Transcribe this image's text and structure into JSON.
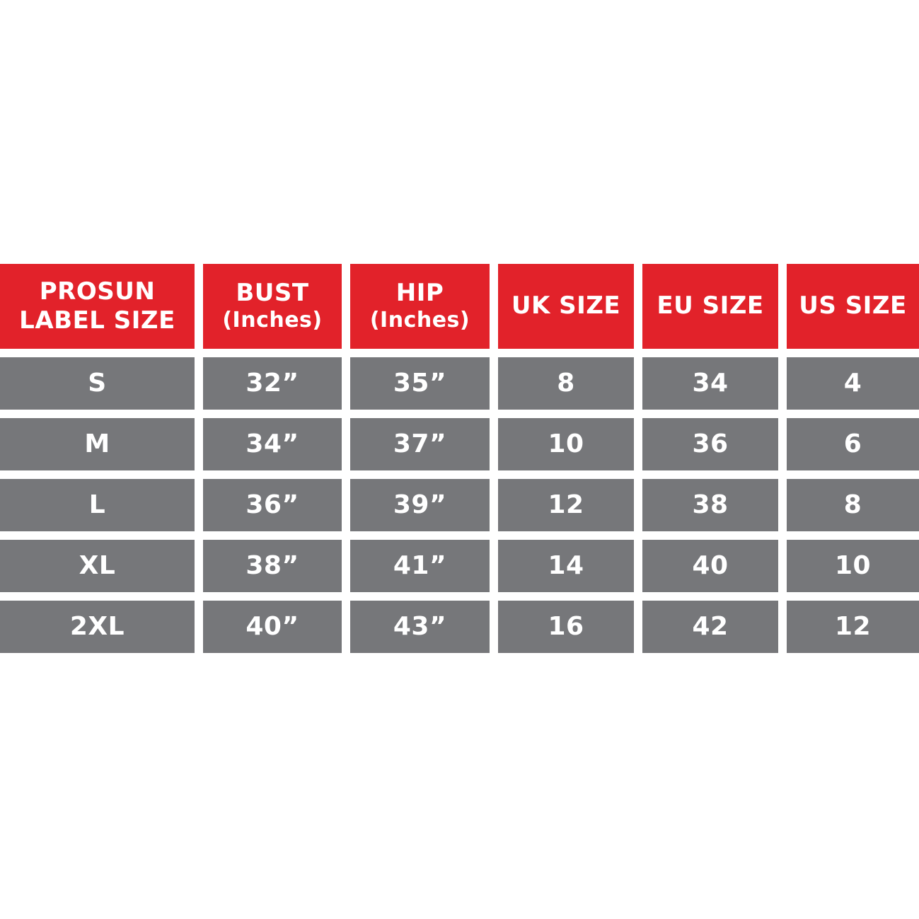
{
  "page": {
    "background": "#ffffff"
  },
  "colors": {
    "header_background": "#e2222a",
    "row_background": "#76777a",
    "cell_text": "#ffffff"
  },
  "table": {
    "columns": [
      {
        "line1": "PROSUN",
        "line2": "LABEL SIZE"
      },
      {
        "line1": "BUST",
        "line2": "(Inches)"
      },
      {
        "line1": "HIP",
        "line2": "(Inches)"
      },
      {
        "line1": "UK SIZE",
        "line2": ""
      },
      {
        "line1": "EU SIZE",
        "line2": ""
      },
      {
        "line1": "US SIZE",
        "line2": ""
      }
    ],
    "rows": [
      {
        "label": "S",
        "bust": "32”",
        "hip": "35”",
        "uk": "8",
        "eu": "34",
        "us": "4"
      },
      {
        "label": "M",
        "bust": "34”",
        "hip": "37”",
        "uk": "10",
        "eu": "36",
        "us": "6"
      },
      {
        "label": "L",
        "bust": "36”",
        "hip": "39”",
        "uk": "12",
        "eu": "38",
        "us": "8"
      },
      {
        "label": "XL",
        "bust": "38”",
        "hip": "41”",
        "uk": "14",
        "eu": "40",
        "us": "10"
      },
      {
        "label": "2XL",
        "bust": "40”",
        "hip": "43”",
        "uk": "16",
        "eu": "42",
        "us": "12"
      }
    ]
  },
  "chart_data": {
    "type": "table",
    "columns": [
      "PROSUN LABEL SIZE",
      "BUST (Inches)",
      "HIP (Inches)",
      "UK SIZE",
      "EU SIZE",
      "US SIZE"
    ],
    "rows": [
      [
        "S",
        "32”",
        "35”",
        "8",
        "34",
        "4"
      ],
      [
        "M",
        "34”",
        "37”",
        "10",
        "36",
        "6"
      ],
      [
        "L",
        "36”",
        "39”",
        "12",
        "38",
        "8"
      ],
      [
        "XL",
        "38”",
        "41”",
        "14",
        "40",
        "10"
      ],
      [
        "2XL",
        "40”",
        "43”",
        "16",
        "42",
        "12"
      ]
    ]
  }
}
